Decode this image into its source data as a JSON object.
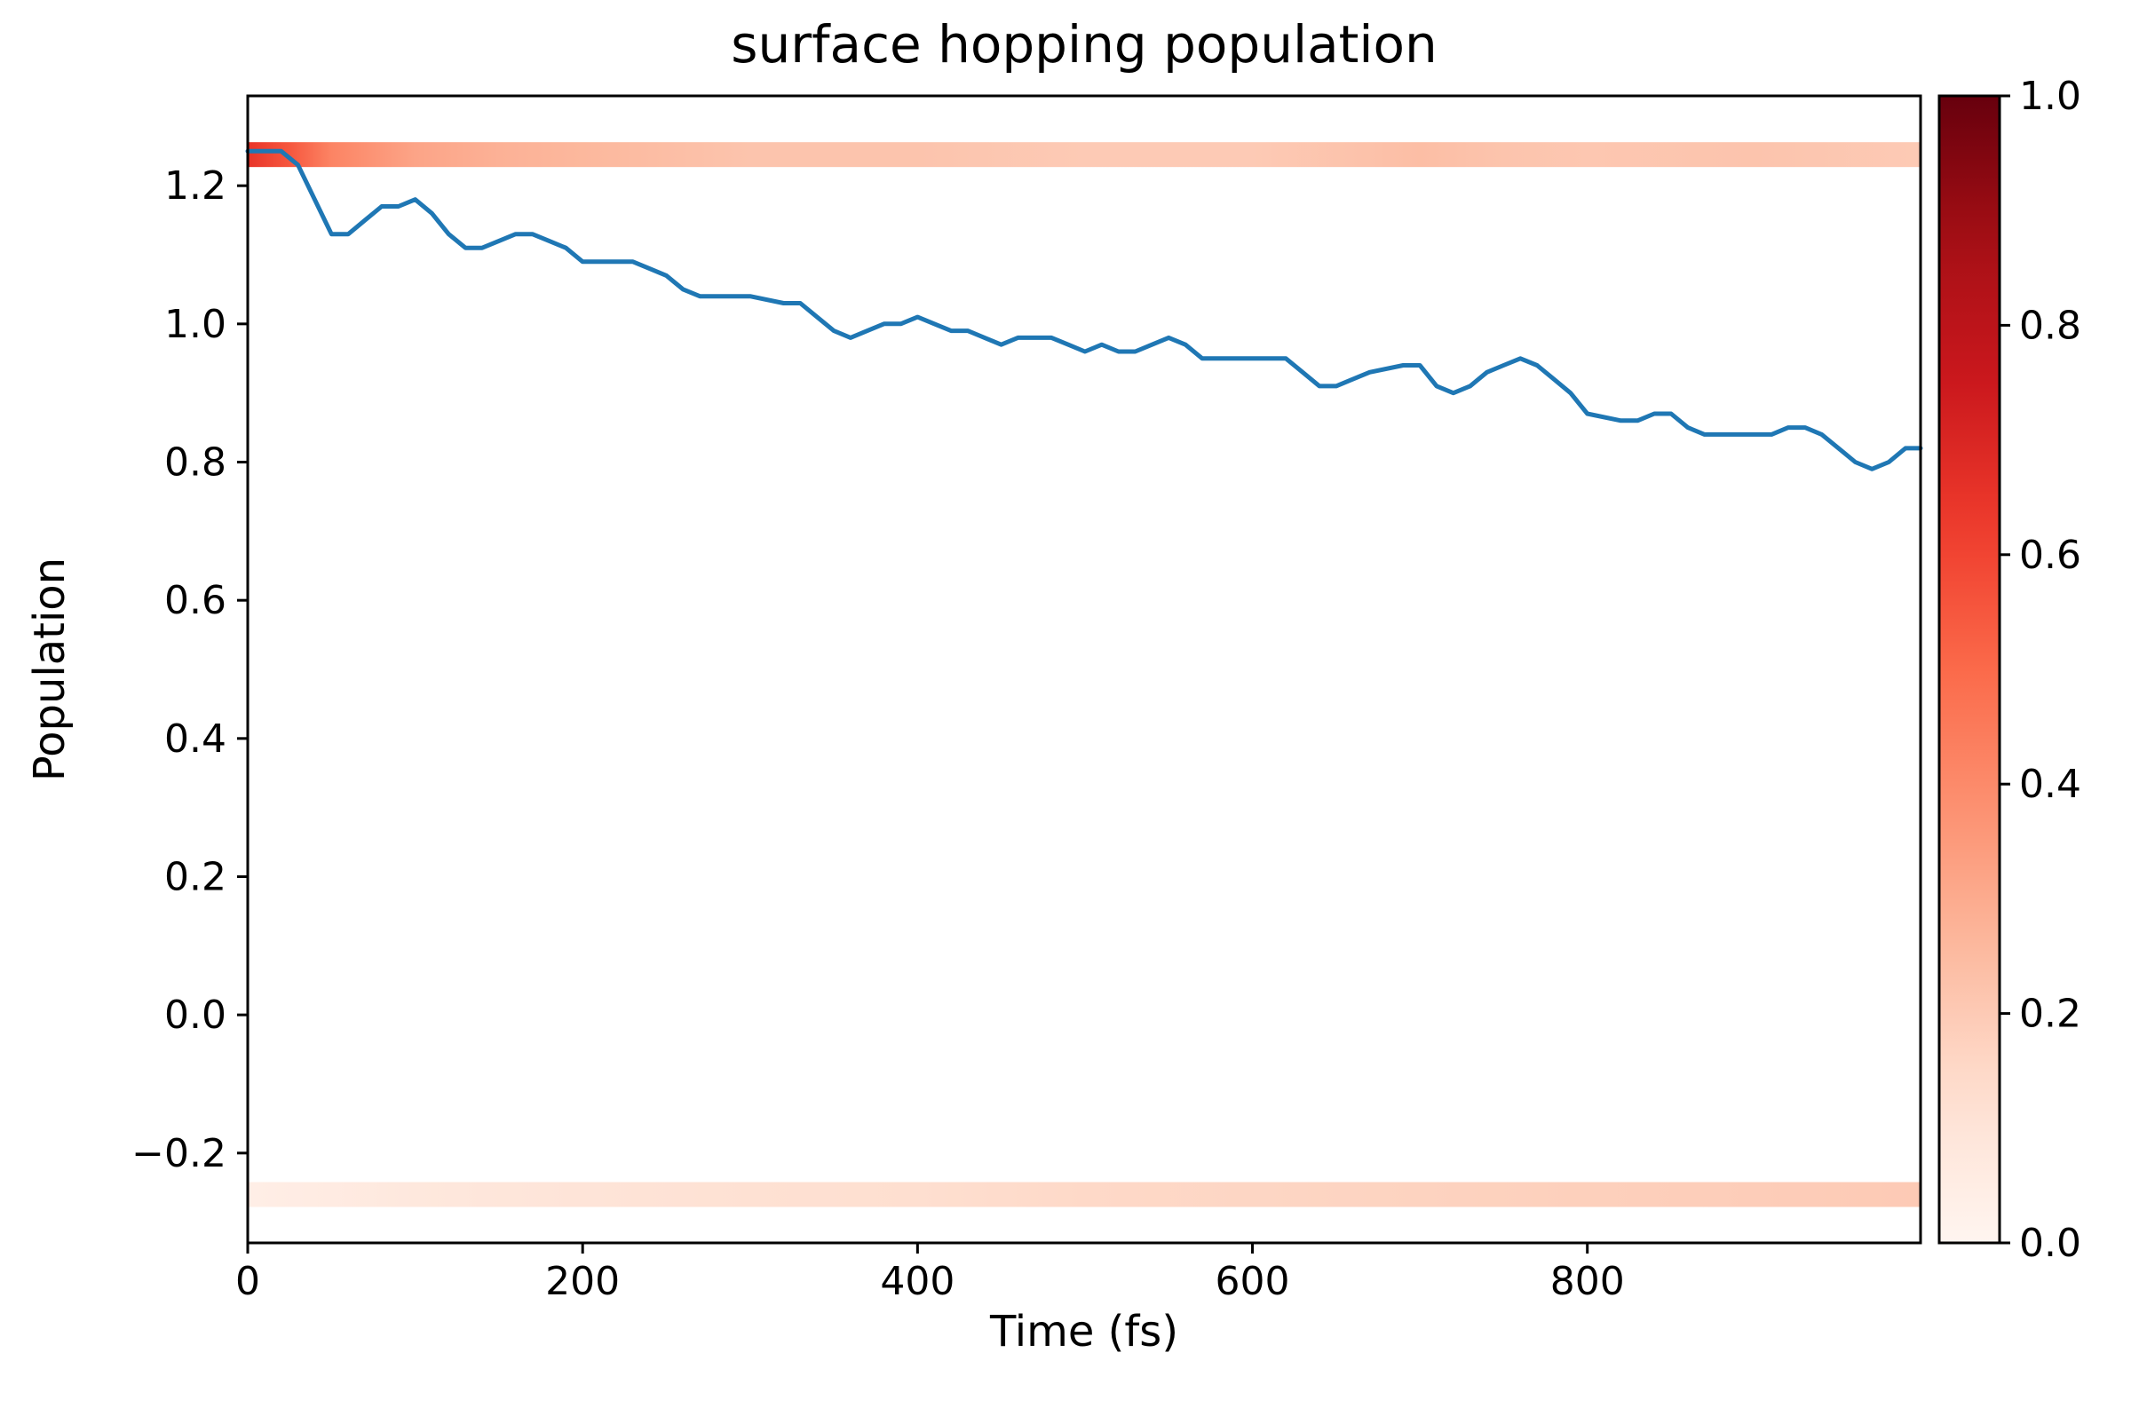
{
  "chart_data": {
    "type": "line",
    "title": "surface hopping population",
    "xlabel": "Time (fs)",
    "ylabel": "Population",
    "xlim": [
      0,
      999
    ],
    "ylim": [
      -0.33,
      1.33
    ],
    "xticks": [
      0,
      200,
      400,
      600,
      800
    ],
    "xtick_labels": [
      "0",
      "200",
      "400",
      "600",
      "800"
    ],
    "yticks": [
      -0.2,
      0.0,
      0.2,
      0.4,
      0.6,
      0.8,
      1.0,
      1.2
    ],
    "ytick_labels": [
      "−0.2",
      "0.0",
      "0.2",
      "0.4",
      "0.6",
      "0.8",
      "1.0",
      "1.2"
    ],
    "grid": false,
    "series": [
      {
        "color": "#1f77b4",
        "x": [
          0,
          20,
          30,
          40,
          50,
          60,
          70,
          80,
          90,
          100,
          110,
          120,
          130,
          140,
          150,
          160,
          170,
          180,
          190,
          200,
          210,
          220,
          230,
          240,
          250,
          260,
          270,
          280,
          300,
          320,
          330,
          340,
          350,
          360,
          370,
          380,
          390,
          400,
          410,
          420,
          430,
          440,
          450,
          460,
          470,
          480,
          490,
          500,
          510,
          520,
          530,
          540,
          550,
          560,
          570,
          580,
          600,
          620,
          630,
          640,
          650,
          660,
          670,
          690,
          700,
          710,
          720,
          730,
          740,
          750,
          760,
          770,
          780,
          790,
          800,
          820,
          830,
          840,
          850,
          860,
          870,
          880,
          890,
          900,
          910,
          920,
          930,
          940,
          950,
          960,
          970,
          980,
          990,
          999
        ],
        "y": [
          1.25,
          1.25,
          1.23,
          1.18,
          1.13,
          1.13,
          1.15,
          1.17,
          1.17,
          1.18,
          1.16,
          1.13,
          1.11,
          1.11,
          1.12,
          1.13,
          1.13,
          1.12,
          1.11,
          1.09,
          1.09,
          1.09,
          1.09,
          1.08,
          1.07,
          1.05,
          1.04,
          1.04,
          1.04,
          1.03,
          1.03,
          1.01,
          0.99,
          0.98,
          0.99,
          1.0,
          1.0,
          1.01,
          1.0,
          0.99,
          0.99,
          0.98,
          0.97,
          0.98,
          0.98,
          0.98,
          0.97,
          0.96,
          0.97,
          0.96,
          0.96,
          0.97,
          0.98,
          0.97,
          0.95,
          0.95,
          0.95,
          0.95,
          0.93,
          0.91,
          0.91,
          0.92,
          0.93,
          0.94,
          0.94,
          0.91,
          0.9,
          0.91,
          0.93,
          0.94,
          0.95,
          0.94,
          0.92,
          0.9,
          0.87,
          0.86,
          0.86,
          0.87,
          0.87,
          0.85,
          0.84,
          0.84,
          0.84,
          0.84,
          0.84,
          0.85,
          0.85,
          0.84,
          0.82,
          0.8,
          0.79,
          0.8,
          0.82,
          0.82
        ]
      }
    ],
    "heat_bands": [
      {
        "y": 1.245,
        "x": [
          0,
          25,
          50,
          100,
          150,
          200,
          300,
          400,
          500,
          600,
          700,
          750,
          800,
          900,
          999
        ],
        "values": [
          0.65,
          0.55,
          0.42,
          0.32,
          0.28,
          0.26,
          0.22,
          0.22,
          0.2,
          0.2,
          0.24,
          0.22,
          0.21,
          0.22,
          0.2
        ]
      },
      {
        "y": -0.26,
        "x": [
          0,
          50,
          100,
          200,
          300,
          400,
          500,
          600,
          700,
          800,
          900,
          999
        ],
        "values": [
          0.04,
          0.06,
          0.08,
          0.1,
          0.12,
          0.13,
          0.15,
          0.16,
          0.17,
          0.18,
          0.19,
          0.2
        ]
      }
    ],
    "colorbar": {
      "colormap": "Reds",
      "range": [
        0,
        1
      ],
      "ticks": [
        0.0,
        0.2,
        0.4,
        0.6,
        0.8,
        1.0
      ],
      "tick_labels": [
        "0.0",
        "0.2",
        "0.4",
        "0.6",
        "0.8",
        "1.0"
      ]
    }
  }
}
